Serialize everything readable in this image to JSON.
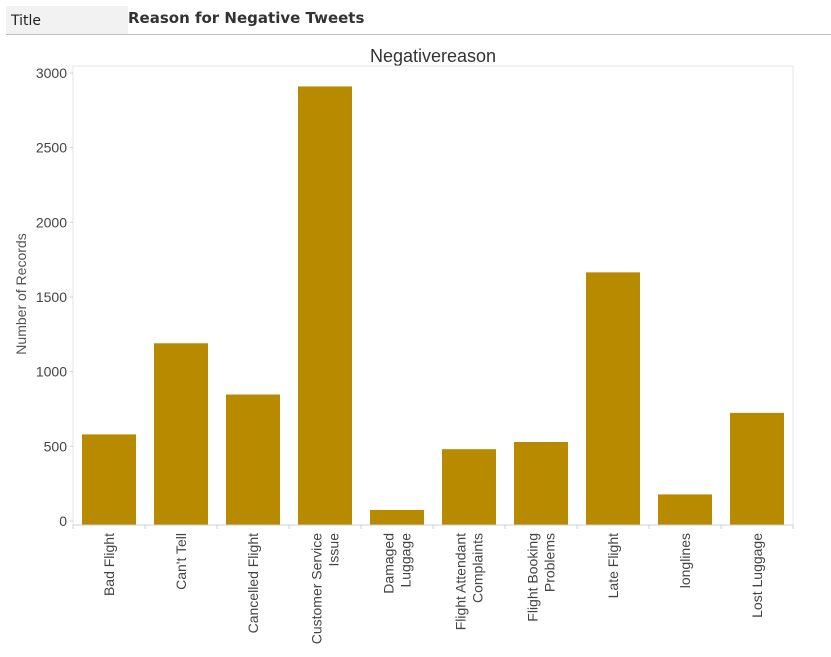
{
  "header": {
    "title_label": "Title",
    "title_value": "Reason for Negative Tweets"
  },
  "chart_data": {
    "type": "bar",
    "title": "Negativereason",
    "xlabel": "",
    "ylabel": "Number of Records",
    "ylim": [
      0,
      3000
    ],
    "yticks": [
      "0",
      "500",
      "1000",
      "1500",
      "2000",
      "2500",
      "3000"
    ],
    "grid": false,
    "bar_color": "#b78a00",
    "categories": [
      [
        "Bad Flight"
      ],
      [
        "Can't Tell"
      ],
      [
        "Cancelled Flight"
      ],
      [
        "Customer Service",
        "Issue"
      ],
      [
        "Damaged",
        "Luggage"
      ],
      [
        "Flight Attendant",
        "Complaints"
      ],
      [
        "Flight Booking",
        "Problems"
      ],
      [
        "Late Flight"
      ],
      [
        "longlines"
      ],
      [
        "Lost Luggage"
      ]
    ],
    "values": [
      580,
      1190,
      847,
      2910,
      74,
      481,
      529,
      1665,
      178,
      724
    ]
  }
}
